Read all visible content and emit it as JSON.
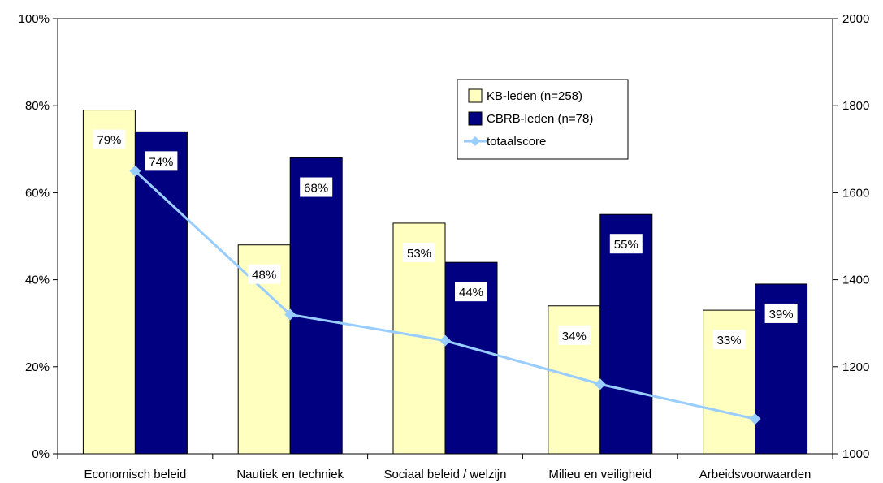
{
  "chart_data": {
    "type": "bar",
    "categories": [
      "Economisch beleid",
      "Nautiek en techniek",
      "Sociaal beleid / welzijn",
      "Milieu en veiligheid",
      "Arbeidsvoorwaarden"
    ],
    "series": [
      {
        "name": "KB-leden (n=258)",
        "type": "bar",
        "axis": "left",
        "color": "#FFFFC0",
        "values": [
          79,
          48,
          53,
          34,
          33
        ],
        "labels": [
          "79%",
          "48%",
          "53%",
          "34%",
          "33%"
        ]
      },
      {
        "name": "CBRB-leden (n=78)",
        "type": "bar",
        "axis": "left",
        "color": "#000080",
        "values": [
          74,
          68,
          44,
          55,
          39
        ],
        "labels": [
          "74%",
          "68%",
          "44%",
          "55%",
          "39%"
        ]
      },
      {
        "name": "totaalscore",
        "type": "line",
        "axis": "right",
        "color": "#99CCFF",
        "values": [
          1650,
          1320,
          1260,
          1160,
          1080
        ]
      }
    ],
    "y_left": {
      "min": 0,
      "max": 100,
      "ticks": [
        0,
        20,
        40,
        60,
        80,
        100
      ],
      "tick_labels": [
        "0%",
        "20%",
        "40%",
        "60%",
        "80%",
        "100%"
      ]
    },
    "y_right": {
      "min": 1000,
      "max": 2000,
      "ticks": [
        1000,
        1200,
        1400,
        1600,
        1800,
        2000
      ],
      "tick_labels": [
        "1000",
        "1200",
        "1400",
        "1600",
        "1800",
        "2000"
      ]
    },
    "grid": false,
    "legend_position": "top-right",
    "title": "",
    "xlabel": "",
    "ylabel": ""
  }
}
